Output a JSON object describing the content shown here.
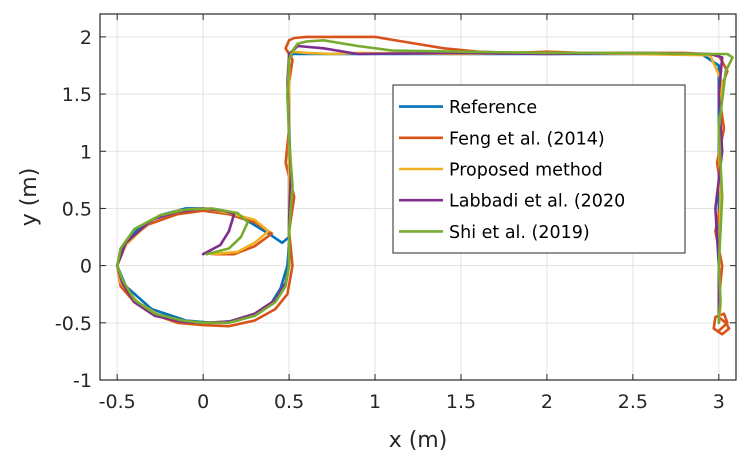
{
  "chart_data": {
    "type": "line",
    "title": "",
    "xlabel": "x  (m)",
    "ylabel": "y  (m)",
    "xlim": [
      -0.6,
      3.1
    ],
    "ylim": [
      -1,
      2.2
    ],
    "xticks": [
      -0.5,
      0,
      0.5,
      1,
      1.5,
      2,
      2.5,
      3
    ],
    "xtick_labels": [
      "-0.5",
      "0",
      "0.5",
      "1",
      "1.5",
      "2",
      "2.5",
      "3"
    ],
    "yticks": [
      -1,
      -0.5,
      0,
      0.5,
      1,
      1.5,
      2
    ],
    "ytick_labels": [
      "-1",
      "-0.5",
      "0",
      "0.5",
      "1",
      "1.5",
      "2"
    ],
    "grid": true,
    "legend_position": "top-right",
    "series": [
      {
        "name": "Reference",
        "color": "#0072BD",
        "x": [
          0.5,
          0.49,
          0.45,
          0.4,
          0.32,
          0.2,
          0.05,
          -0.1,
          -0.3,
          -0.45,
          -0.5,
          -0.47,
          -0.38,
          -0.25,
          -0.1,
          0.0,
          0.12,
          0.25,
          0.38,
          0.46,
          0.5,
          0.5,
          0.5,
          0.5,
          0.5,
          0.52,
          0.6,
          1.0,
          1.5,
          2.0,
          2.5,
          2.9,
          3.0,
          3.0,
          3.0,
          3.0,
          3.0,
          3.0
        ],
        "y": [
          0.2,
          0.0,
          -0.2,
          -0.32,
          -0.42,
          -0.48,
          -0.5,
          -0.48,
          -0.38,
          -0.18,
          0.0,
          0.15,
          0.32,
          0.44,
          0.5,
          0.5,
          0.47,
          0.4,
          0.28,
          0.2,
          0.25,
          0.6,
          1.0,
          1.4,
          1.8,
          1.85,
          1.85,
          1.85,
          1.85,
          1.85,
          1.85,
          1.85,
          1.75,
          1.2,
          0.6,
          0.0,
          -0.4,
          -0.5
        ]
      },
      {
        "name": "Feng et al. (2014)",
        "color": "#D95319",
        "x": [
          0.07,
          0.18,
          0.3,
          0.4,
          0.3,
          0.15,
          0.0,
          -0.15,
          -0.32,
          -0.45,
          -0.5,
          -0.48,
          -0.4,
          -0.3,
          -0.15,
          0.0,
          0.15,
          0.3,
          0.42,
          0.49,
          0.52,
          0.5,
          0.53,
          0.48,
          0.5,
          0.49,
          0.52,
          0.48,
          0.5,
          0.53,
          0.6,
          0.8,
          1.0,
          1.2,
          1.4,
          1.6,
          1.8,
          2.0,
          2.2,
          2.4,
          2.6,
          2.8,
          2.92,
          3.0,
          3.05,
          3.0,
          3.03,
          2.99,
          3.02,
          2.98,
          3.02,
          3.0,
          3.0,
          3.04,
          3.06,
          3.02,
          2.97,
          2.98,
          3.03,
          3.05,
          3.0
        ],
        "y": [
          0.1,
          0.1,
          0.17,
          0.28,
          0.38,
          0.45,
          0.48,
          0.45,
          0.36,
          0.2,
          0.0,
          -0.18,
          -0.32,
          -0.42,
          -0.5,
          -0.52,
          -0.53,
          -0.48,
          -0.38,
          -0.25,
          0.0,
          0.3,
          0.6,
          0.9,
          1.2,
          1.5,
          1.8,
          1.9,
          1.97,
          1.99,
          2.0,
          2.0,
          2.0,
          1.95,
          1.9,
          1.87,
          1.86,
          1.87,
          1.86,
          1.86,
          1.86,
          1.86,
          1.85,
          1.84,
          1.7,
          1.5,
          1.2,
          0.9,
          0.6,
          0.3,
          0.0,
          -0.3,
          -0.45,
          -0.5,
          -0.55,
          -0.6,
          -0.55,
          -0.45,
          -0.42,
          -0.5,
          -0.57
        ]
      },
      {
        "name": "Proposed method",
        "color": "#EDB120",
        "x": [
          0.05,
          0.2,
          0.3,
          0.38,
          0.3,
          0.15,
          0.0,
          -0.15,
          -0.3,
          -0.45,
          -0.5,
          -0.48,
          -0.38,
          -0.25,
          -0.1,
          0.0,
          0.15,
          0.3,
          0.42,
          0.48,
          0.5,
          0.5,
          0.5,
          0.5,
          0.5,
          0.52,
          0.6,
          0.75,
          0.9,
          1.5,
          2.0,
          2.5,
          2.95,
          3.02,
          3.0,
          3.01,
          3.0,
          3.01,
          3.0
        ],
        "y": [
          0.1,
          0.12,
          0.2,
          0.3,
          0.4,
          0.46,
          0.5,
          0.48,
          0.4,
          0.18,
          0.0,
          -0.15,
          -0.32,
          -0.44,
          -0.49,
          -0.5,
          -0.49,
          -0.42,
          -0.3,
          -0.15,
          0.0,
          0.5,
          1.0,
          1.5,
          1.8,
          1.87,
          1.86,
          1.85,
          1.86,
          1.85,
          1.86,
          1.85,
          1.84,
          1.6,
          1.2,
          0.6,
          0.0,
          -0.35,
          -0.5
        ]
      },
      {
        "name": "Labbadi et al. (2020",
        "color": "#7E2F8E",
        "x": [
          0.0,
          0.1,
          0.15,
          0.18,
          0.12,
          0.0,
          -0.15,
          -0.3,
          -0.45,
          -0.5,
          -0.47,
          -0.4,
          -0.28,
          -0.12,
          0.0,
          0.15,
          0.3,
          0.42,
          0.48,
          0.5,
          0.5,
          0.51,
          0.5,
          0.49,
          0.5,
          0.55,
          0.7,
          0.9,
          1.5,
          2.0,
          2.5,
          2.95,
          3.02,
          3.0,
          3.02,
          2.98,
          3.0,
          3.0,
          3.0
        ],
        "y": [
          0.1,
          0.18,
          0.3,
          0.45,
          0.48,
          0.5,
          0.47,
          0.4,
          0.2,
          0.0,
          -0.15,
          -0.32,
          -0.44,
          -0.49,
          -0.5,
          -0.49,
          -0.42,
          -0.3,
          -0.15,
          0.0,
          0.4,
          0.8,
          1.2,
          1.6,
          1.85,
          1.92,
          1.9,
          1.85,
          1.86,
          1.85,
          1.86,
          1.85,
          1.82,
          1.5,
          1.0,
          0.5,
          0.0,
          -0.4,
          -0.5
        ]
      },
      {
        "name": "Shi et al. (2019)",
        "color": "#77AC30",
        "x": [
          0.02,
          0.15,
          0.22,
          0.26,
          0.2,
          0.05,
          -0.1,
          -0.25,
          -0.4,
          -0.48,
          -0.5,
          -0.47,
          -0.4,
          -0.28,
          -0.12,
          0.0,
          0.15,
          0.3,
          0.42,
          0.48,
          0.5,
          0.5,
          0.52,
          0.5,
          0.49,
          0.5,
          0.52,
          0.55,
          0.6,
          0.7,
          0.9,
          1.1,
          1.5,
          2.0,
          2.5,
          2.9,
          3.05,
          3.08,
          3.04,
          3.0,
          3.02,
          3.0,
          3.01,
          3.0,
          3.0
        ],
        "y": [
          0.1,
          0.15,
          0.25,
          0.38,
          0.46,
          0.5,
          0.49,
          0.44,
          0.32,
          0.15,
          0.0,
          -0.12,
          -0.3,
          -0.42,
          -0.48,
          -0.5,
          -0.5,
          -0.44,
          -0.32,
          -0.18,
          0.0,
          0.3,
          0.7,
          1.1,
          1.5,
          1.8,
          1.88,
          1.94,
          1.96,
          1.97,
          1.92,
          1.88,
          1.87,
          1.86,
          1.86,
          1.85,
          1.85,
          1.82,
          1.7,
          1.2,
          0.6,
          0.0,
          -0.3,
          -0.45,
          -0.5
        ]
      }
    ]
  }
}
